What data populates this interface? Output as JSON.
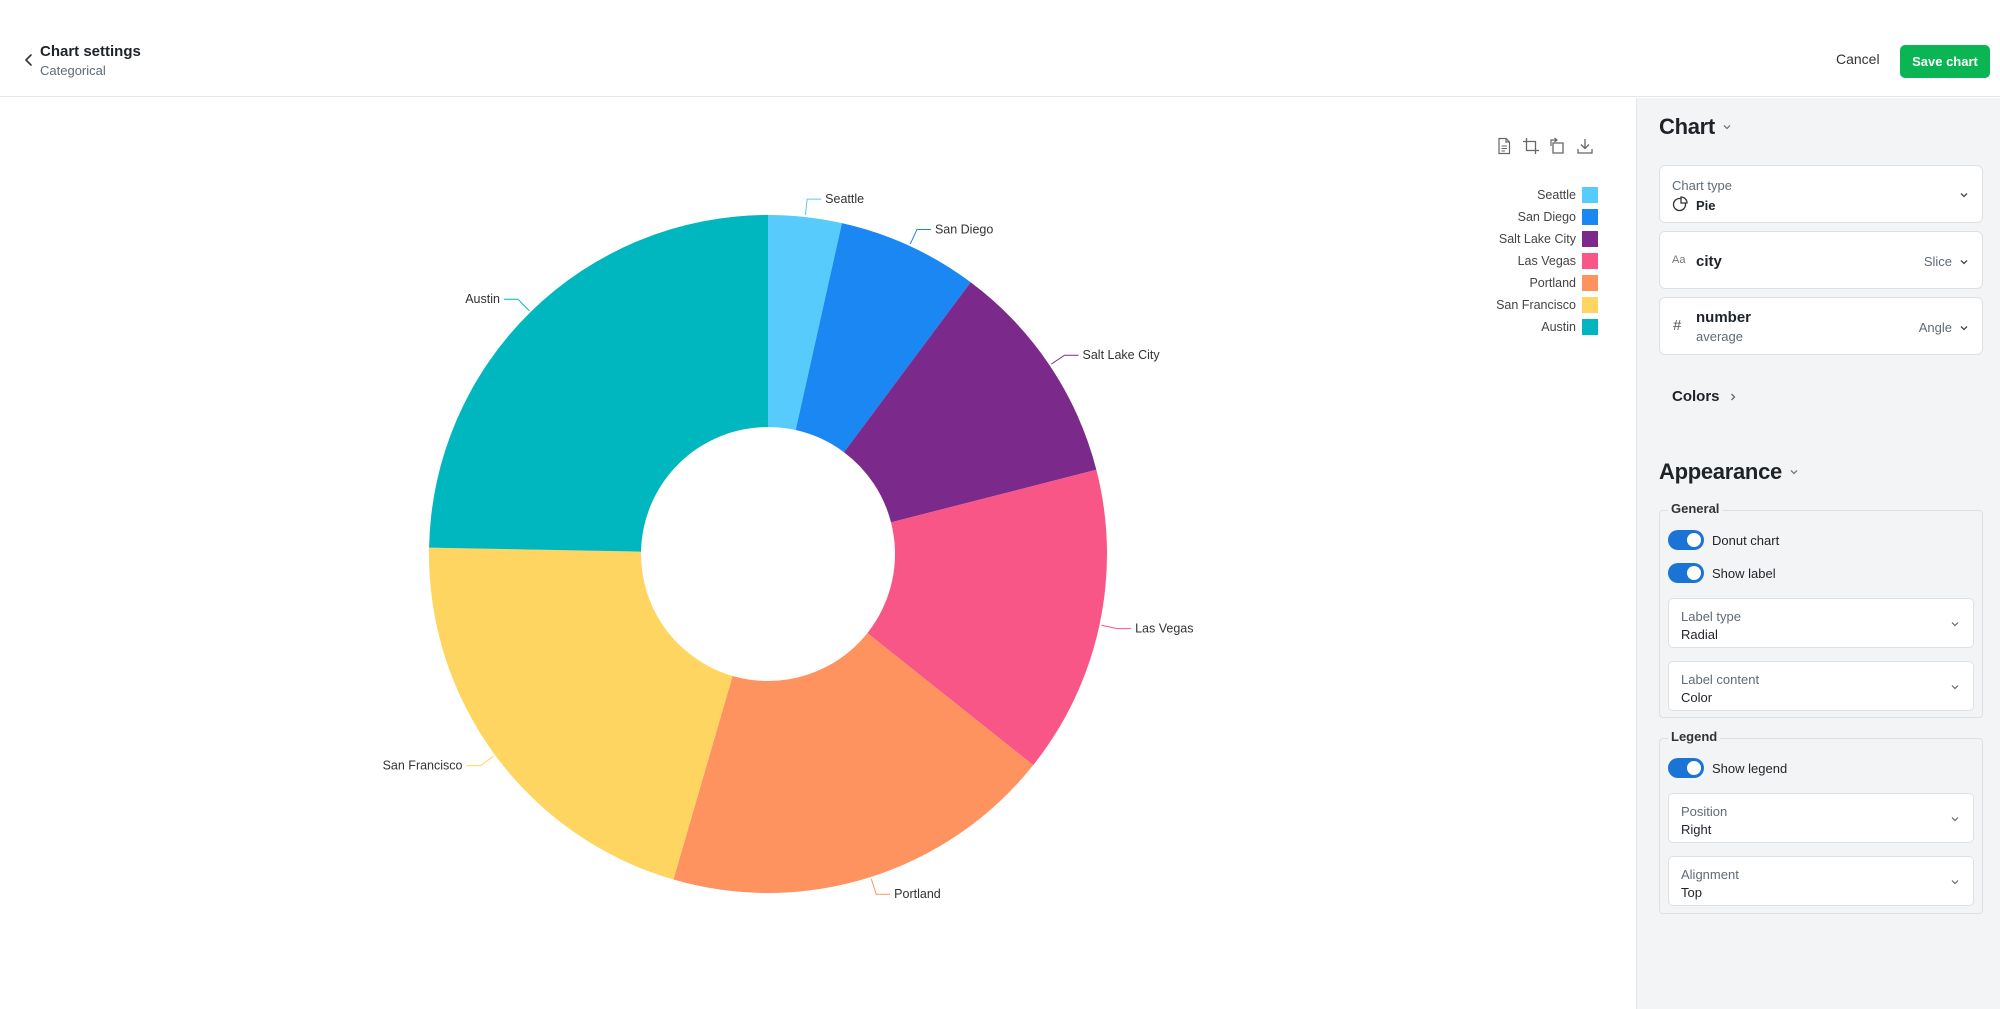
{
  "header": {
    "title": "Chart settings",
    "subtitle": "Categorical",
    "cancel_label": "Cancel",
    "save_label": "Save chart"
  },
  "toolbar": {
    "icons": [
      "document-icon",
      "crop-icon",
      "rotate-icon",
      "download-icon"
    ]
  },
  "chart_data": {
    "type": "pie",
    "donut": true,
    "categories": [
      "Seattle",
      "San Diego",
      "Salt Lake City",
      "Las Vegas",
      "Portland",
      "San Francisco",
      "Austin"
    ],
    "values": [
      3.5,
      6.7,
      10.8,
      14.7,
      18.8,
      20.8,
      24.7
    ],
    "colors": [
      "#56cbfc",
      "#1b87f2",
      "#7b2a8c",
      "#f85686",
      "#ff935f",
      "#fed561",
      "#00b6bf"
    ],
    "legend_position": "right",
    "legend_alignment": "top",
    "label_type": "radial"
  },
  "panel": {
    "chart_heading": "Chart",
    "chart_type": {
      "label": "Chart type",
      "value": "Pie",
      "icon": "pie-chart-icon"
    },
    "dimension": {
      "type_glyph": "Aa",
      "field": "city",
      "role": "Slice"
    },
    "measure": {
      "type_glyph": "#",
      "field": "number",
      "aggregation": "average",
      "role": "Angle"
    },
    "colors_label": "Colors",
    "appearance_heading": "Appearance",
    "general": {
      "legend": "General",
      "donut_label": "Donut chart",
      "donut_on": true,
      "show_label_label": "Show label",
      "show_label_on": true,
      "label_type": {
        "label": "Label type",
        "value": "Radial"
      },
      "label_content": {
        "label": "Label content",
        "value": "Color"
      }
    },
    "legend_section": {
      "legend": "Legend",
      "show_legend_label": "Show legend",
      "show_legend_on": true,
      "position": {
        "label": "Position",
        "value": "Right"
      },
      "alignment": {
        "label": "Alignment",
        "value": "Top"
      }
    }
  }
}
